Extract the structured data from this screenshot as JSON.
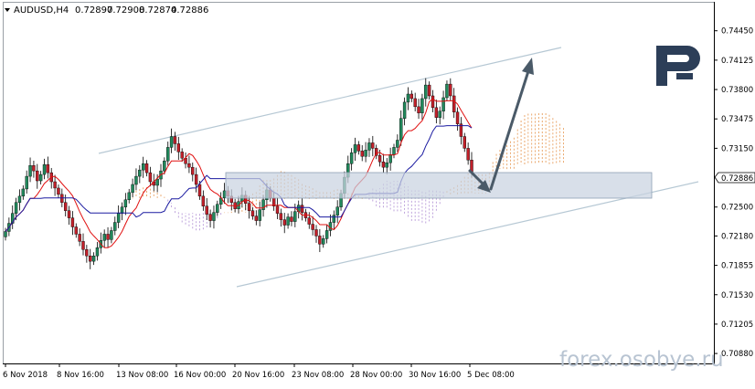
{
  "header": {
    "symbol": "AUDUSD,H4",
    "open": "0.72897",
    "high": "0.72908",
    "low": "0.72874",
    "close": "0.72886"
  },
  "watermark": "forex.osobye.ru",
  "logo_letter": "R",
  "colors": {
    "bull": "#21895c",
    "bear": "#c2202a",
    "tenkan": "#e01010",
    "kijun": "#1a1aa0",
    "cloud_a": "#e8a060",
    "cloud_b": "#b89ad8",
    "channel": "#b6c8d4",
    "zone": "#c9d3e0",
    "arrow": "#4a5a68",
    "logo": "#2c3e58"
  },
  "chart_data": {
    "type": "candlestick",
    "price_label": "0.72886",
    "y_ticks": [
      "0.74450",
      "0.74125",
      "0.73800",
      "0.73475",
      "0.73150",
      "0.72825",
      "0.72500",
      "0.72180",
      "0.71855",
      "0.71530",
      "0.71205",
      "0.70880"
    ],
    "x_ticks": [
      "6 Nov 2018",
      "8 Nov 16:00",
      "13 Nov 08:00",
      "16 Nov 00:00",
      "20 Nov 16:00",
      "23 Nov 08:00",
      "28 Nov 00:00",
      "30 Nov 16:00",
      "5 Dec 08:00"
    ],
    "ylim": [
      0.7078,
      0.7475
    ],
    "closes": [
      0.7223,
      0.7232,
      0.7243,
      0.7255,
      0.7262,
      0.727,
      0.7284,
      0.7296,
      0.729,
      0.7279,
      0.7286,
      0.7297,
      0.7288,
      0.7278,
      0.7271,
      0.7264,
      0.7255,
      0.7246,
      0.7238,
      0.7228,
      0.722,
      0.7212,
      0.7203,
      0.7196,
      0.719,
      0.7196,
      0.7205,
      0.7213,
      0.722,
      0.7214,
      0.7224,
      0.7233,
      0.7243,
      0.725,
      0.7258,
      0.7266,
      0.7275,
      0.7284,
      0.7291,
      0.7298,
      0.7288,
      0.7278,
      0.7274,
      0.7281,
      0.729,
      0.7301,
      0.7316,
      0.7328,
      0.732,
      0.7311,
      0.7304,
      0.7298,
      0.7294,
      0.7286,
      0.7275,
      0.7262,
      0.7251,
      0.7242,
      0.7235,
      0.7244,
      0.7253,
      0.726,
      0.7268,
      0.7262,
      0.7255,
      0.7248,
      0.7256,
      0.7263,
      0.7254,
      0.7246,
      0.724,
      0.7235,
      0.7247,
      0.7258,
      0.7269,
      0.726,
      0.7251,
      0.7243,
      0.7236,
      0.723,
      0.7239,
      0.7234,
      0.7245,
      0.7252,
      0.7244,
      0.7238,
      0.7231,
      0.7225,
      0.7218,
      0.7209,
      0.7215,
      0.7224,
      0.7233,
      0.7241,
      0.725,
      0.7265,
      0.7283,
      0.7298,
      0.731,
      0.7319,
      0.7312,
      0.7306,
      0.7313,
      0.7321,
      0.7315,
      0.7307,
      0.73,
      0.7294,
      0.7299,
      0.7308,
      0.7316,
      0.7324,
      0.7348,
      0.7366,
      0.7375,
      0.737,
      0.7361,
      0.7354,
      0.737,
      0.7385,
      0.7373,
      0.736,
      0.7349,
      0.7356,
      0.7371,
      0.7386,
      0.7373,
      0.7355,
      0.7342,
      0.7328,
      0.7315,
      0.7302,
      0.7289
    ]
  }
}
